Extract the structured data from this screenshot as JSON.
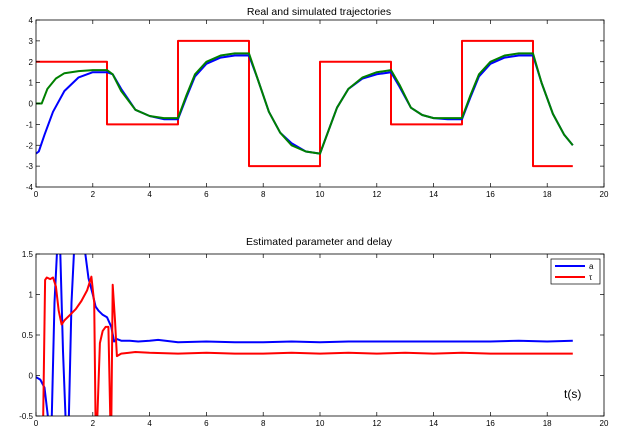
{
  "chart_data": [
    {
      "type": "line",
      "title": "Real and simulated trajectories",
      "xlim": [
        0,
        20
      ],
      "ylim": [
        -4,
        4
      ],
      "xticks": [
        0,
        2,
        4,
        6,
        8,
        10,
        12,
        14,
        16,
        18,
        20
      ],
      "yticks": [
        -4,
        -3,
        -2,
        -1,
        0,
        1,
        2,
        3,
        4
      ],
      "grid": false,
      "series": [
        {
          "color": "#ff0000",
          "x": [
            0,
            2.5,
            2.5,
            5.0,
            5.0,
            7.5,
            7.5,
            10.0,
            10.0,
            12.5,
            12.5,
            15.0,
            15.0,
            17.5,
            17.5,
            18.9
          ],
          "y": [
            2,
            2,
            -1,
            -1,
            3,
            3,
            -3,
            -3,
            2,
            2,
            -1,
            -1,
            3,
            3,
            -3,
            -3
          ]
        },
        {
          "color": "#0000ff",
          "x": [
            0,
            0.1,
            0.3,
            0.6,
            1.0,
            1.5,
            2.0,
            2.5,
            2.7,
            3.0,
            3.5,
            4.0,
            4.5,
            5.0,
            5.3,
            5.6,
            6.0,
            6.5,
            7.0,
            7.5,
            7.8,
            8.2,
            8.6,
            9.0,
            9.5,
            10.0,
            10.3,
            10.6,
            11.0,
            11.5,
            12.0,
            12.5,
            12.8,
            13.2,
            13.6,
            14.0,
            14.5,
            15.0,
            15.3,
            15.6,
            16.0,
            16.5,
            17.0,
            17.5,
            17.8,
            18.2,
            18.6,
            18.9
          ],
          "y": [
            -2.4,
            -2.3,
            -1.5,
            -0.4,
            0.6,
            1.25,
            1.5,
            1.5,
            1.4,
            0.7,
            -0.3,
            -0.6,
            -0.75,
            -0.75,
            0.3,
            1.3,
            1.9,
            2.2,
            2.3,
            2.3,
            1.2,
            -0.4,
            -1.4,
            -1.9,
            -2.3,
            -2.4,
            -1.3,
            -0.2,
            0.7,
            1.2,
            1.4,
            1.5,
            0.8,
            -0.2,
            -0.55,
            -0.7,
            -0.75,
            -0.75,
            0.3,
            1.3,
            1.9,
            2.2,
            2.3,
            2.3,
            1.0,
            -0.5,
            -1.5,
            -2.0
          ]
        },
        {
          "color": "#008000",
          "x": [
            0,
            0.2,
            0.4,
            0.7,
            1.0,
            1.5,
            2.0,
            2.5,
            2.7,
            3.0,
            3.5,
            4.0,
            4.5,
            5.0,
            5.3,
            5.6,
            6.0,
            6.5,
            7.0,
            7.5,
            7.8,
            8.2,
            8.6,
            9.0,
            9.5,
            10.0,
            10.3,
            10.6,
            11.0,
            11.5,
            12.0,
            12.5,
            12.8,
            13.2,
            13.6,
            14.0,
            14.5,
            15.0,
            15.3,
            15.6,
            16.0,
            16.5,
            17.0,
            17.5,
            17.8,
            18.2,
            18.6,
            18.9
          ],
          "y": [
            0,
            0.0,
            0.7,
            1.2,
            1.45,
            1.55,
            1.6,
            1.6,
            1.4,
            0.6,
            -0.3,
            -0.6,
            -0.7,
            -0.7,
            0.4,
            1.4,
            2.0,
            2.3,
            2.4,
            2.4,
            1.2,
            -0.4,
            -1.4,
            -2.0,
            -2.3,
            -2.4,
            -1.3,
            -0.2,
            0.7,
            1.25,
            1.5,
            1.6,
            0.9,
            -0.2,
            -0.55,
            -0.7,
            -0.7,
            -0.7,
            0.4,
            1.4,
            2.0,
            2.3,
            2.4,
            2.4,
            1.0,
            -0.5,
            -1.5,
            -2.0
          ]
        }
      ]
    },
    {
      "type": "line",
      "title": "Estimated parameter and delay",
      "xlim": [
        0,
        20
      ],
      "ylim": [
        -0.5,
        1.5
      ],
      "xticks": [
        0,
        2,
        4,
        6,
        8,
        10,
        12,
        14,
        16,
        18,
        20
      ],
      "yticks": [
        -0.5,
        0,
        0.5,
        1,
        1.5
      ],
      "grid": false,
      "legend_position": "top-right",
      "annotation": "t(s)",
      "series": [
        {
          "name": "a",
          "color": "#0000ff",
          "x": [
            0,
            0.15,
            0.3,
            0.45,
            0.55,
            0.65,
            0.75,
            0.85,
            0.95,
            1.05,
            1.15,
            1.25,
            1.35,
            1.5,
            1.6,
            1.7,
            1.85,
            2.0,
            2.1,
            2.2,
            2.35,
            2.5,
            2.65,
            2.75,
            2.85,
            3.0,
            3.3,
            3.6,
            4.0,
            4.3,
            5,
            6,
            7,
            8,
            9,
            10,
            11,
            12,
            13,
            14,
            15,
            16,
            17,
            18,
            18.9
          ],
          "y": [
            -0.02,
            -0.05,
            -0.15,
            -0.6,
            -0.6,
            0.9,
            1.6,
            1.6,
            0.3,
            -0.6,
            -0.6,
            0.9,
            1.6,
            1.6,
            1.6,
            1.6,
            1.2,
            1.0,
            0.85,
            0.8,
            0.75,
            0.72,
            0.6,
            0.42,
            0.45,
            0.43,
            0.43,
            0.42,
            0.43,
            0.44,
            0.41,
            0.42,
            0.41,
            0.41,
            0.42,
            0.41,
            0.42,
            0.42,
            0.42,
            0.42,
            0.42,
            0.42,
            0.43,
            0.42,
            0.43
          ]
        },
        {
          "name": "τ",
          "color": "#ff0000",
          "x": [
            0,
            0.15,
            0.25,
            0.32,
            0.38,
            0.5,
            0.6,
            0.7,
            0.8,
            0.9,
            1.0,
            1.2,
            1.4,
            1.6,
            1.8,
            1.95,
            2.05,
            2.1,
            2.15,
            2.25,
            2.35,
            2.45,
            2.55,
            2.62,
            2.65,
            2.7,
            2.78,
            2.85,
            3.0,
            3.5,
            4,
            5,
            6,
            7,
            8,
            9,
            10,
            11,
            12,
            13,
            14,
            15,
            16,
            17,
            18,
            18.9
          ],
          "y": [
            -0.6,
            -0.6,
            -0.6,
            1.18,
            1.21,
            1.19,
            1.21,
            1.1,
            0.8,
            0.63,
            0.68,
            0.75,
            0.82,
            0.92,
            1.05,
            1.22,
            0.9,
            -0.6,
            -0.6,
            0.4,
            0.55,
            0.6,
            0.6,
            -0.6,
            -0.6,
            1.12,
            0.68,
            0.24,
            0.27,
            0.29,
            0.28,
            0.27,
            0.28,
            0.27,
            0.27,
            0.28,
            0.27,
            0.28,
            0.27,
            0.28,
            0.27,
            0.28,
            0.27,
            0.27,
            0.27,
            0.27
          ]
        }
      ]
    }
  ]
}
